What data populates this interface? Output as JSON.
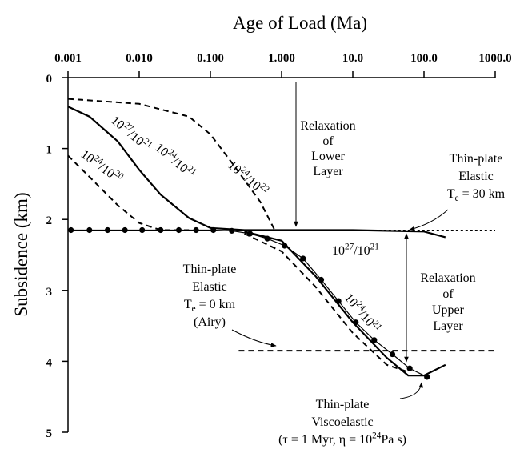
{
  "chart_data": {
    "type": "line",
    "xlabel": "Age of Load (Ma)",
    "ylabel": "Subsidence (km)",
    "xscale": "log",
    "yinverted": true,
    "xlim": [
      0.001,
      1000
    ],
    "ylim": [
      0,
      5
    ],
    "xticks": [
      0.001,
      {
        "value": 0.01,
        "label": "0.010"
      },
      {
        "value": 0.1,
        "label": "0.100"
      },
      {
        "value": 1,
        "label": "1.000"
      },
      {
        "value": 10,
        "label": "10.0"
      },
      {
        "value": 100,
        "label": "100.0"
      },
      {
        "value": 1000,
        "label": "1000.0"
      }
    ],
    "yticks": [
      0,
      1,
      2,
      3,
      4,
      5
    ],
    "series": [
      {
        "label": [
          {
            "t": "10"
          },
          {
            "t": "27",
            "sup": true
          },
          {
            "t": "/10"
          },
          {
            "t": "21",
            "sup": true
          }
        ],
        "style": "solid",
        "color": "#000000",
        "x": [
          0.001,
          0.002,
          0.005,
          0.01,
          0.02,
          0.05,
          0.1,
          0.3,
          1,
          10,
          100,
          200
        ],
        "values": [
          0.41,
          0.55,
          0.9,
          1.3,
          1.65,
          1.98,
          2.12,
          2.15,
          2.15,
          2.15,
          2.17,
          2.25
        ]
      },
      {
        "label": [
          {
            "t": "10"
          },
          {
            "t": "24",
            "sup": true
          },
          {
            "t": "/10"
          },
          {
            "t": "21",
            "sup": true
          }
        ],
        "style": "solid",
        "color": "#000000",
        "x": [
          0.3,
          1,
          3,
          10,
          30,
          60,
          100,
          200
        ],
        "values": [
          2.17,
          2.3,
          2.8,
          3.45,
          3.95,
          4.2,
          4.2,
          4.05
        ]
      },
      {
        "label": [
          {
            "t": "10"
          },
          {
            "t": "24",
            "sup": true
          },
          {
            "t": "/10"
          },
          {
            "t": "22",
            "sup": true
          }
        ],
        "style": "dashed",
        "color": "#000000",
        "x": [
          0.001,
          0.01,
          0.05,
          0.1,
          0.2,
          0.5,
          0.8
        ],
        "values": [
          0.3,
          0.37,
          0.55,
          0.8,
          1.2,
          1.75,
          2.15
        ]
      },
      {
        "label": [
          {
            "t": "10"
          },
          {
            "t": "24",
            "sup": true
          },
          {
            "t": "/10"
          },
          {
            "t": "20",
            "sup": true
          }
        ],
        "style": "dashed",
        "color": "#000000",
        "x": [
          0.001,
          0.002,
          0.005,
          0.01,
          0.02,
          0.05
        ],
        "values": [
          1.1,
          1.4,
          1.8,
          2.05,
          2.15,
          2.15
        ]
      },
      {
        "label": [
          {
            "t": "10"
          },
          {
            "t": "27",
            "sup": true
          },
          {
            "t": "/10"
          },
          {
            "t": "21",
            "sup": true
          }
        ],
        "style": "dashed",
        "color": "#000000",
        "x": [
          0.3,
          1,
          3,
          10,
          30,
          60
        ],
        "values": [
          2.2,
          2.45,
          2.95,
          3.6,
          4.05,
          4.15
        ]
      },
      {
        "style": "solid",
        "markers": true,
        "color": "#000000",
        "x": [
          0.0011,
          0.002,
          0.0036,
          0.0063,
          0.011,
          0.02,
          0.036,
          0.063,
          0.11,
          0.2,
          0.36,
          0.63,
          1.1,
          2,
          3.6,
          6.3,
          11,
          20,
          36,
          63,
          110
        ],
        "values": [
          2.15,
          2.15,
          2.15,
          2.15,
          2.15,
          2.15,
          2.15,
          2.15,
          2.15,
          2.16,
          2.2,
          2.27,
          2.37,
          2.55,
          2.85,
          3.15,
          3.45,
          3.7,
          3.9,
          4.1,
          4.22
        ]
      },
      {
        "style": "dotted",
        "color": "#000000",
        "x": [
          20,
          1000
        ],
        "values": [
          2.15,
          2.15
        ]
      },
      {
        "style": "dashed",
        "color": "#000000",
        "x": [
          0.25,
          1000
        ],
        "values": [
          3.85,
          3.85
        ]
      }
    ],
    "annotations": [
      {
        "lines": [
          [
            {
              "t": "Relaxation"
            }
          ],
          [
            {
              "t": "of"
            }
          ],
          [
            {
              "t": "Lower"
            }
          ],
          [
            {
              "t": "Layer"
            }
          ]
        ]
      },
      {
        "lines": [
          [
            {
              "t": "Thin-plate"
            }
          ],
          [
            {
              "t": "Elastic"
            }
          ],
          [
            {
              "t": "T"
            },
            {
              "t": "e",
              "sub": true
            },
            {
              "t": " = 30 km"
            }
          ]
        ]
      },
      {
        "lines": [
          [
            {
              "t": "Relaxation"
            }
          ],
          [
            {
              "t": "of"
            }
          ],
          [
            {
              "t": "Upper"
            }
          ],
          [
            {
              "t": "Layer"
            }
          ]
        ]
      },
      {
        "lines": [
          [
            {
              "t": "Thin-plate"
            }
          ],
          [
            {
              "t": "Elastic"
            }
          ],
          [
            {
              "t": "T"
            },
            {
              "t": "e",
              "sub": true
            },
            {
              "t": " = 0 km"
            }
          ],
          [
            {
              "t": "(Airy)"
            }
          ]
        ]
      },
      {
        "lines": [
          [
            {
              "t": "Thin-plate"
            }
          ],
          [
            {
              "t": "Viscoelastic"
            }
          ],
          [
            {
              "t": "(τ = 1 Myr, η = 10"
            },
            {
              "t": "24",
              "sup": true
            },
            {
              "t": "Pa s)"
            }
          ]
        ]
      }
    ]
  }
}
